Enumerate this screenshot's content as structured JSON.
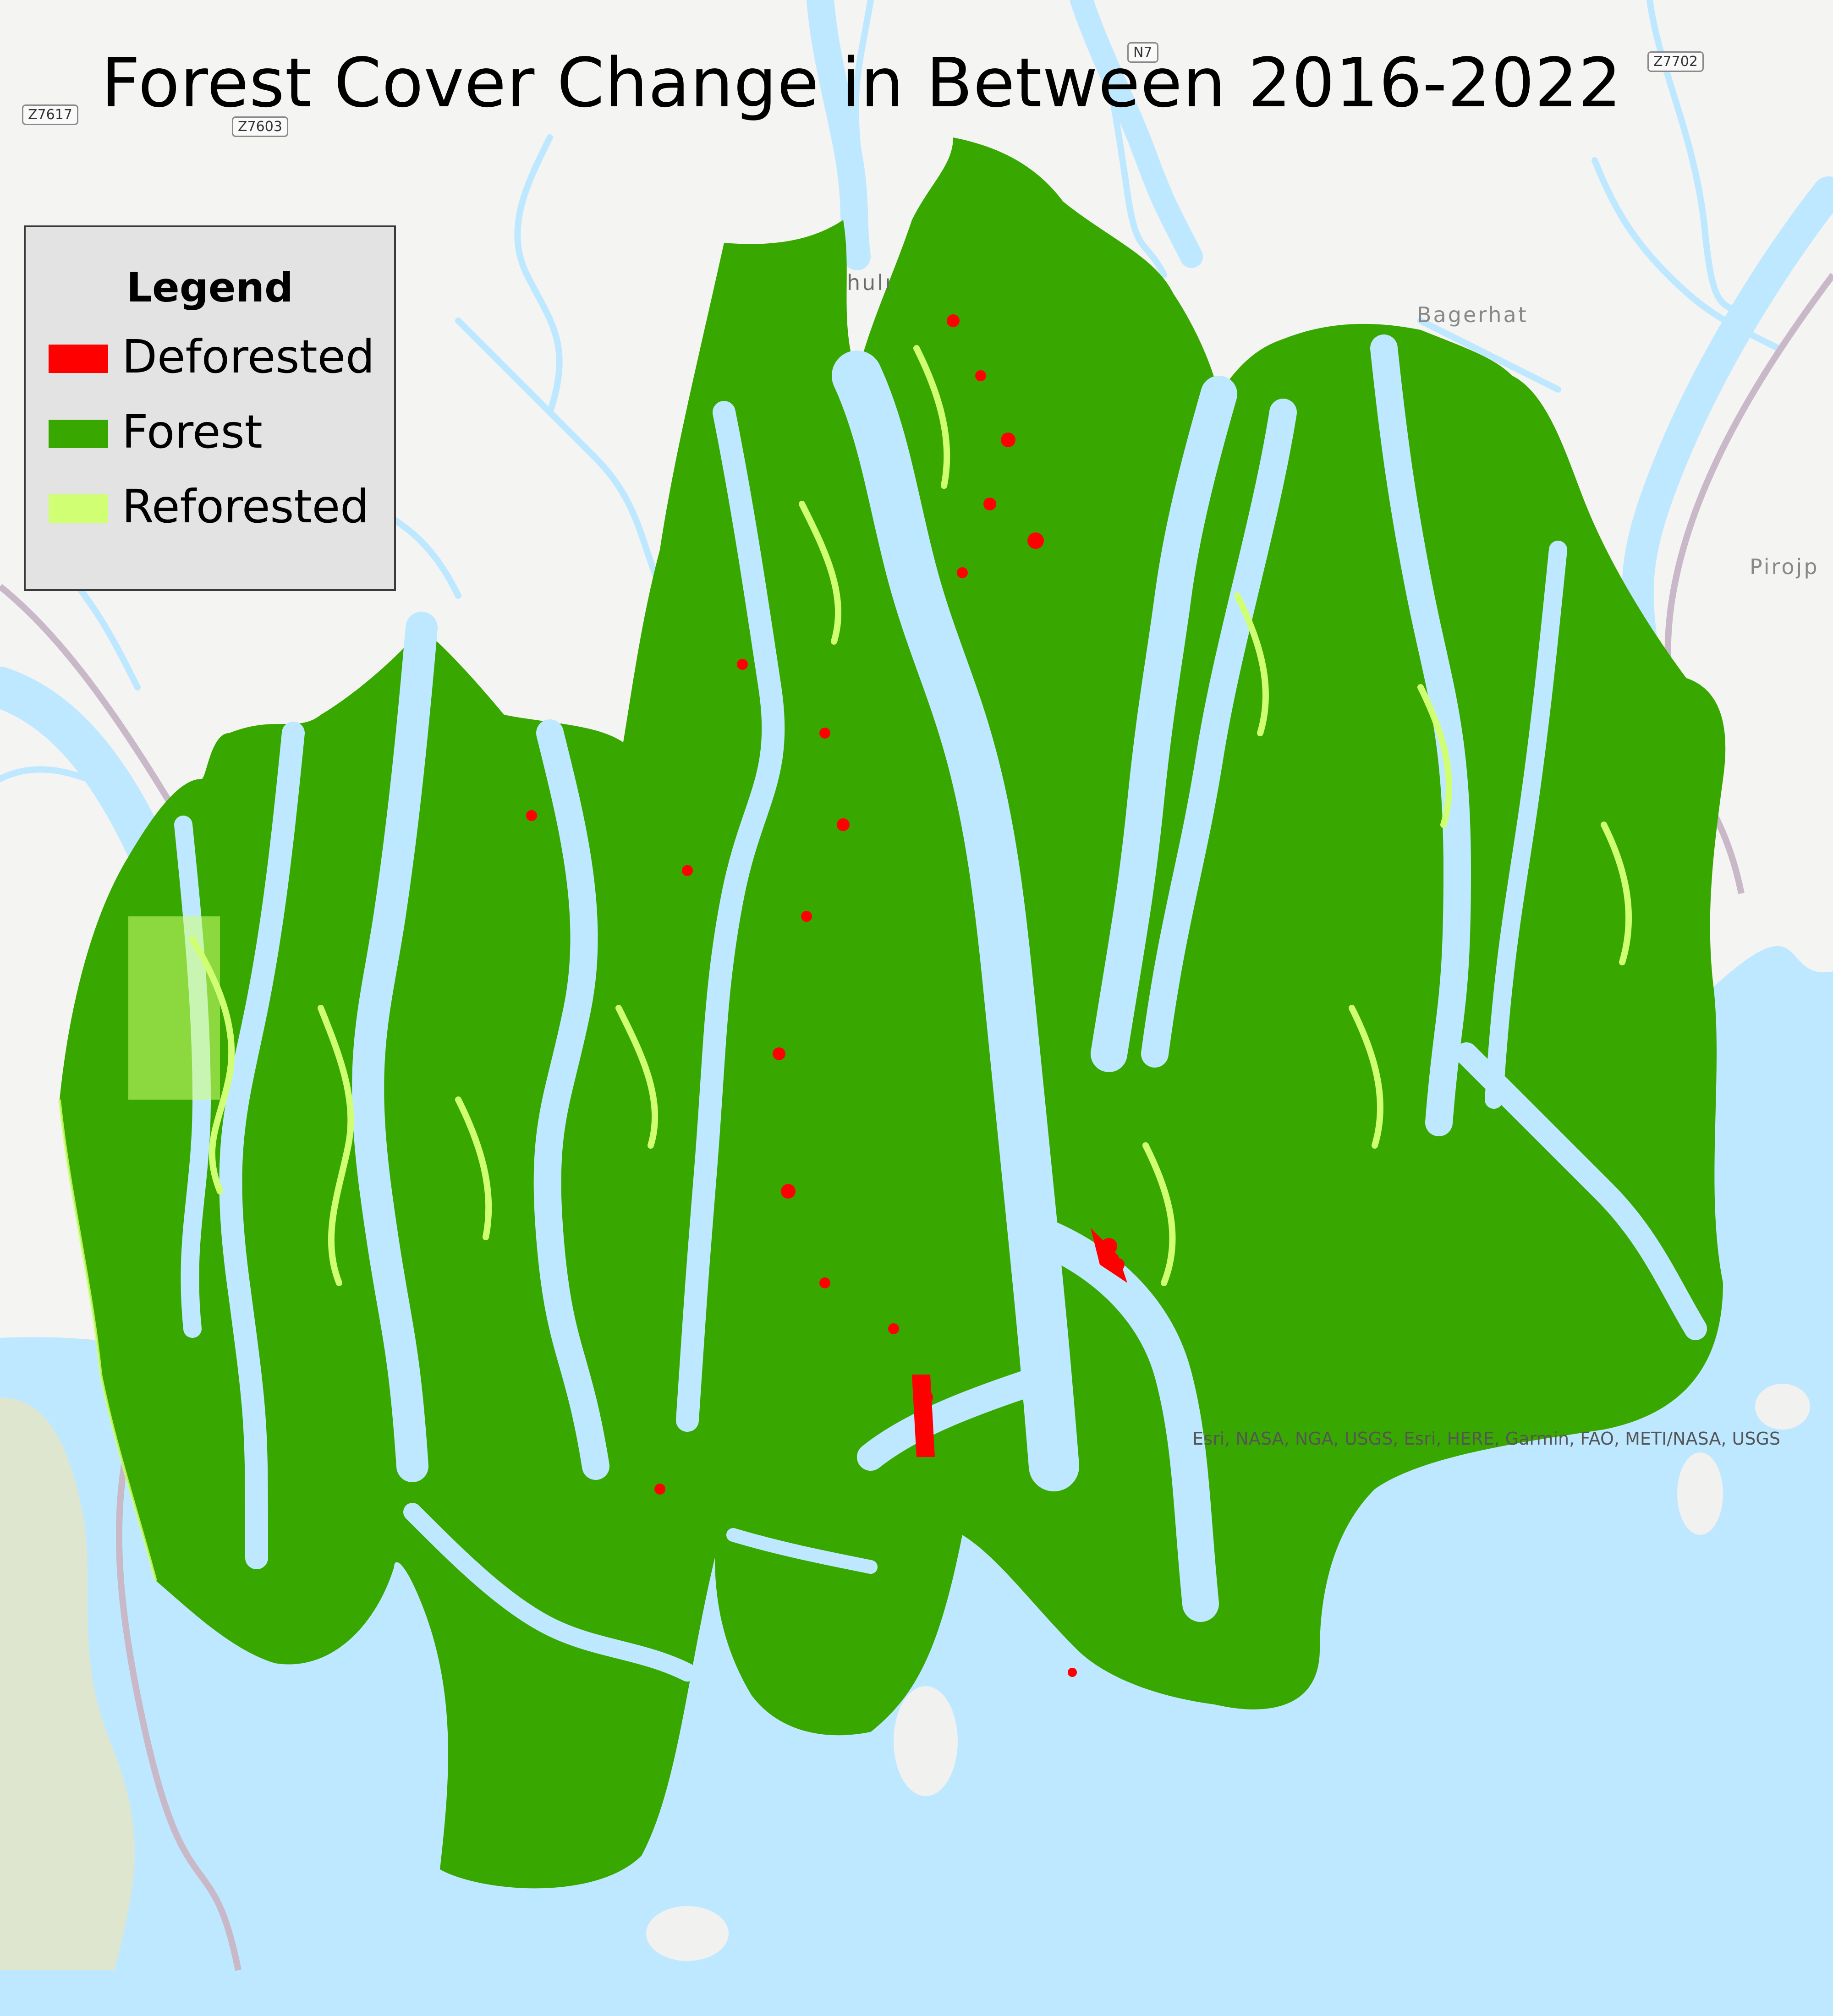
{
  "title": "Forest Cover Change in Between 2016-2022",
  "legend": {
    "heading": "Legend",
    "items": [
      {
        "label": "Deforested",
        "color": "#ff0000"
      },
      {
        "label": "Forest",
        "color": "#38a800"
      },
      {
        "label": "Reforested",
        "color": "#d1ff73"
      }
    ]
  },
  "places": {
    "bagerhat": "Bagerhat",
    "pirojpur": "Pirojp",
    "khulna_partial": "hulı"
  },
  "roads": {
    "n7": "N7",
    "z7702": "Z7702",
    "z7617": "Z7617",
    "z7603": "Z7603"
  },
  "attribution": "Esri, NASA, NGA, USGS, Esri, HERE, Garmin, FAO, METI/NASA, USGS",
  "colors": {
    "water": "#bee8ff",
    "land": "#f4f4f2",
    "forest": "#38a800",
    "deforested": "#ff0000",
    "reforested": "#d1ff73",
    "mudflat": "#dfe6cf"
  }
}
